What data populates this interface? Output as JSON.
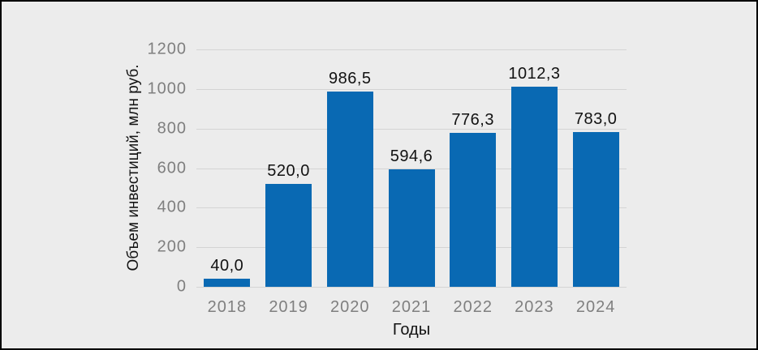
{
  "chart_data": {
    "type": "bar",
    "title": "",
    "categories": [
      "2018",
      "2019",
      "2020",
      "2021",
      "2022",
      "2023",
      "2024"
    ],
    "values": [
      40.0,
      520.0,
      986.5,
      594.6,
      776.3,
      1012.3,
      783.0
    ],
    "value_labels": [
      "40,0",
      "520,0",
      "986,5",
      "594,6",
      "776,3",
      "1012,3",
      "783,0"
    ],
    "xlabel": "Годы",
    "ylabel": "Объем инвестиций, млн руб.",
    "ylim": [
      0,
      1200
    ],
    "yticks": [
      0,
      200,
      400,
      600,
      800,
      1000,
      1200
    ],
    "grid": "horizontal",
    "legend": "none",
    "decimal_separator": ","
  },
  "colors": {
    "background": "#ececec",
    "bar": "#0969b3",
    "gridline": "#d4d4d4",
    "tick_label": "#7f7f7f",
    "value_label": "#121212",
    "axis_title": "#121212",
    "frame": "#000000"
  }
}
